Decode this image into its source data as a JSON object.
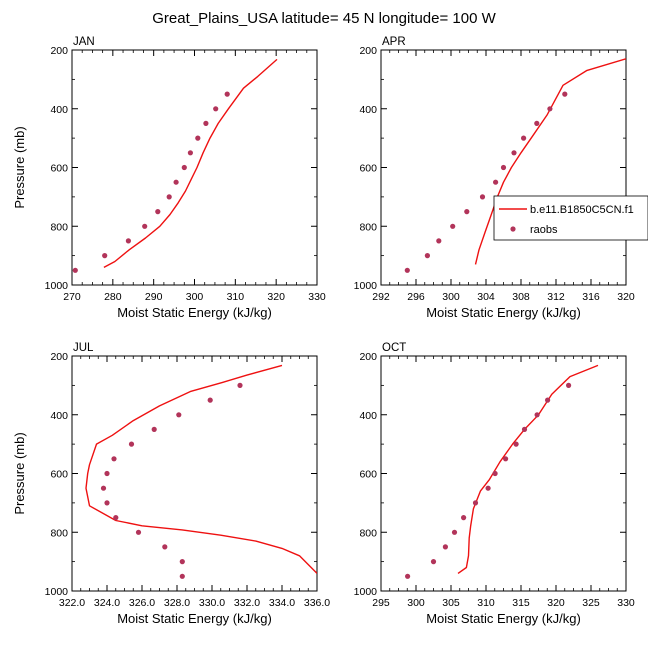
{
  "figure_title": "Great_Plains_USA  latitude= 45 N longitude= 100 W",
  "colors": {
    "model": "#ee1111",
    "obs": "#b2345a",
    "axis": "#000000"
  },
  "legend": {
    "model_label": "b.e11.B1850C5CN.f1",
    "obs_label": "raobs"
  },
  "chart_data": [
    {
      "type": "line",
      "title": "JAN",
      "xlabel": "Moist Static Energy (kJ/kg)",
      "ylabel": "Pressure (mb)",
      "xlim": [
        270,
        330
      ],
      "ylim": [
        1000,
        200
      ],
      "x_ticks": [
        270,
        280,
        290,
        300,
        310,
        320,
        330
      ],
      "x_tick_labels": [
        "270",
        "280",
        "290",
        "300",
        "310",
        "320",
        "330"
      ],
      "y_ticks": [
        200,
        400,
        600,
        800,
        1000
      ],
      "y_tick_labels": [
        "200",
        "400",
        "600",
        "800",
        "1000"
      ],
      "series": [
        {
          "name": "b.e11.B1850C5CN.f1",
          "kind": "line",
          "x": [
            277.8,
            280.5,
            284.0,
            288.0,
            291.5,
            294.0,
            296.0,
            297.8,
            299.2,
            300.6,
            302.1,
            303.8,
            305.8,
            308.3,
            312.0,
            315.5,
            320.2
          ],
          "y": [
            940,
            920,
            880,
            840,
            800,
            760,
            720,
            680,
            640,
            600,
            550,
            500,
            450,
            400,
            330,
            290,
            232
          ]
        },
        {
          "name": "raobs",
          "kind": "scatter",
          "x": [
            270.8,
            278.0,
            283.8,
            287.8,
            291.0,
            293.8,
            295.5,
            297.5,
            299.0,
            300.8,
            302.8,
            305.2,
            308.0
          ],
          "y": [
            950,
            900,
            850,
            800,
            750,
            700,
            650,
            600,
            550,
            500,
            450,
            400,
            350
          ]
        }
      ]
    },
    {
      "type": "line",
      "title": "APR",
      "xlabel": "Moist Static Energy (kJ/kg)",
      "ylabel": "",
      "xlim": [
        292,
        320
      ],
      "ylim": [
        1000,
        200
      ],
      "x_ticks": [
        292,
        296,
        300,
        304,
        308,
        312,
        316,
        320
      ],
      "x_tick_labels": [
        "292",
        "296",
        "300",
        "304",
        "308",
        "312",
        "316",
        "320"
      ],
      "y_ticks": [
        200,
        400,
        600,
        800,
        1000
      ],
      "y_tick_labels": [
        "200",
        "400",
        "600",
        "800",
        "1000"
      ],
      "series": [
        {
          "name": "b.e11.B1850C5CN.f1",
          "kind": "line",
          "x": [
            302.8,
            303.2,
            303.9,
            304.6,
            305.3,
            306.0,
            306.9,
            308.0,
            309.4,
            311.0,
            312.8,
            315.5,
            320.0
          ],
          "y": [
            930,
            880,
            820,
            760,
            700,
            650,
            600,
            550,
            490,
            420,
            320,
            270,
            230
          ]
        },
        {
          "name": "raobs",
          "kind": "scatter",
          "x": [
            295.0,
            297.3,
            298.6,
            300.2,
            301.8,
            303.6,
            305.1,
            306.0,
            307.2,
            308.3,
            309.8,
            311.3,
            313.0
          ],
          "y": [
            950,
            900,
            850,
            800,
            750,
            700,
            650,
            600,
            550,
            500,
            450,
            400,
            350
          ]
        }
      ]
    },
    {
      "type": "line",
      "title": "JUL",
      "xlabel": "Moist Static Energy (kJ/kg)",
      "ylabel": "Pressure (mb)",
      "xlim": [
        322,
        336
      ],
      "ylim": [
        1000,
        200
      ],
      "x_ticks": [
        322,
        324,
        326,
        328,
        330,
        332,
        334,
        336
      ],
      "x_tick_labels": [
        "322.0",
        "324.0",
        "326.0",
        "328.0",
        "330.0",
        "332.0",
        "334.0",
        "336.0"
      ],
      "y_ticks": [
        200,
        400,
        600,
        800,
        1000
      ],
      "y_tick_labels": [
        "200",
        "400",
        "600",
        "800",
        "1000"
      ],
      "series": [
        {
          "name": "b.e11.B1850C5CN.f1",
          "kind": "line",
          "x": [
            336.0,
            335.0,
            334.0,
            332.5,
            330.5,
            328.3,
            326.0,
            324.5,
            323.0,
            322.8,
            322.9,
            323.0,
            323.4,
            324.3,
            325.5,
            327.0,
            328.8,
            330.6,
            332.0,
            334.0
          ],
          "y": [
            940,
            880,
            855,
            830,
            810,
            792,
            778,
            760,
            710,
            650,
            600,
            570,
            500,
            470,
            420,
            370,
            320,
            290,
            265,
            232
          ]
        },
        {
          "name": "raobs",
          "kind": "scatter",
          "x": [
            328.3,
            328.3,
            327.3,
            325.8,
            324.5,
            324.0,
            323.8,
            324.0,
            324.4,
            325.4,
            326.7,
            328.1,
            329.9,
            331.6
          ],
          "y": [
            950,
            900,
            850,
            800,
            750,
            700,
            650,
            600,
            550,
            500,
            450,
            400,
            350,
            300
          ]
        }
      ]
    },
    {
      "type": "line",
      "title": "OCT",
      "xlabel": "Moist Static Energy (kJ/kg)",
      "ylabel": "",
      "xlim": [
        295,
        330
      ],
      "ylim": [
        1000,
        200
      ],
      "x_ticks": [
        295,
        300,
        305,
        310,
        315,
        320,
        325,
        330
      ],
      "x_tick_labels": [
        "295",
        "300",
        "305",
        "310",
        "315",
        "320",
        "325",
        "330"
      ],
      "y_ticks": [
        200,
        400,
        600,
        800,
        1000
      ],
      "y_tick_labels": [
        "200",
        "400",
        "600",
        "800",
        "1000"
      ],
      "series": [
        {
          "name": "b.e11.B1850C5CN.f1",
          "kind": "line",
          "x": [
            306.0,
            307.2,
            307.5,
            307.6,
            307.8,
            308.2,
            309.2,
            310.5,
            312.0,
            313.8,
            315.5,
            317.5,
            319.4,
            322.0,
            326.0
          ],
          "y": [
            940,
            920,
            880,
            820,
            780,
            720,
            660,
            620,
            560,
            500,
            450,
            400,
            330,
            270,
            232
          ]
        },
        {
          "name": "raobs",
          "kind": "scatter",
          "x": [
            298.8,
            302.5,
            304.2,
            305.5,
            306.8,
            308.5,
            310.3,
            311.3,
            312.8,
            314.3,
            315.5,
            317.3,
            318.8,
            321.8
          ],
          "y": [
            950,
            900,
            850,
            800,
            750,
            700,
            650,
            600,
            550,
            500,
            450,
            400,
            350,
            300
          ]
        }
      ]
    }
  ]
}
